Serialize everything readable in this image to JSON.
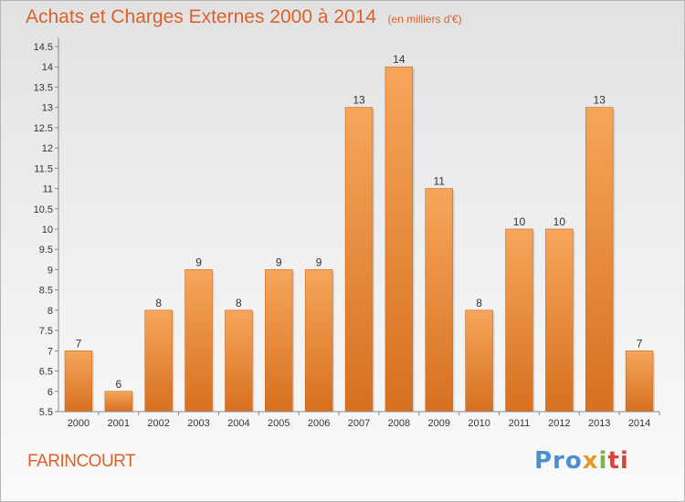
{
  "header": {
    "title": "Achats et Charges Externes 2000 à 2014",
    "unit": "(en milliers d'€)"
  },
  "footer": {
    "commune": "FARINCOURT",
    "logo": [
      "Pro",
      "x",
      "i",
      "ti"
    ]
  },
  "colors": {
    "title": "#d9622b",
    "bar_top": "#f6a65b",
    "bar_bottom": "#d7701f"
  },
  "chart_data": {
    "type": "bar",
    "categories": [
      "2000",
      "2001",
      "2002",
      "2003",
      "2004",
      "2005",
      "2006",
      "2007",
      "2008",
      "2009",
      "2010",
      "2011",
      "2012",
      "2013",
      "2014"
    ],
    "values": [
      7,
      6,
      8,
      9,
      8,
      9,
      9,
      13,
      14,
      11,
      8,
      10,
      10,
      13,
      7
    ],
    "data_labels": [
      "7",
      "6",
      "8",
      "9",
      "8",
      "9",
      "9",
      "13",
      "14",
      "11",
      "8",
      "10",
      "10",
      "13",
      "7"
    ],
    "yticks": [
      "5.5",
      "6",
      "6.5",
      "7",
      "7.5",
      "8",
      "8.5",
      "9",
      "9.5",
      "10",
      "10.5",
      "11",
      "11.5",
      "12",
      "12.5",
      "13",
      "13.5",
      "14",
      "14.5"
    ],
    "ylim": [
      5.5,
      14.5
    ],
    "xlabel": "",
    "ylabel": "",
    "grid": false,
    "legend": "none"
  }
}
